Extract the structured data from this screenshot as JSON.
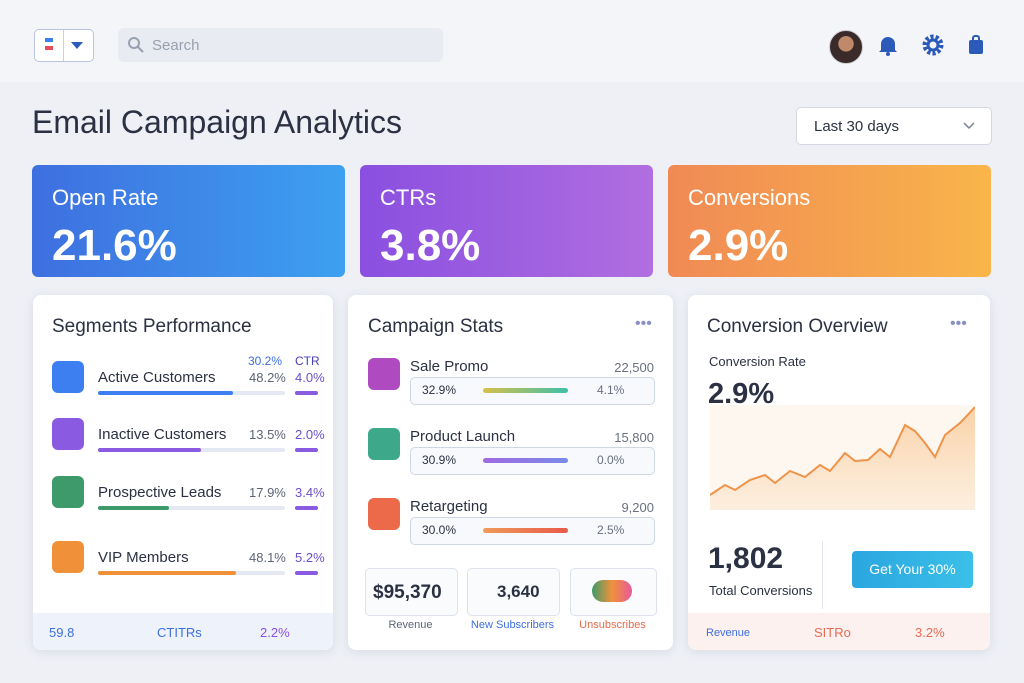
{
  "header": {
    "search": "Search"
  },
  "page": {
    "title": "Email Campaign Analytics",
    "date_range": "Last 30 days"
  },
  "kpis": [
    {
      "label": "Open Rate",
      "value": "21.6%"
    },
    {
      "label": "CTRs",
      "value": "3.8%"
    },
    {
      "label": "Conversions",
      "value": "2.9%"
    }
  ],
  "segments": {
    "title": "Segments Performance",
    "header": [
      "30.2%",
      "CTR"
    ],
    "rows": [
      {
        "name": "Active Customers",
        "rate": "48.2%",
        "ctr": "4.0%"
      },
      {
        "name": "Inactive Customers",
        "rate": "13.5%",
        "ctr": "2.0%"
      },
      {
        "name": "Prospective Leads",
        "rate": "17.9%",
        "ctr": "3.4%"
      },
      {
        "name": "VIP Members",
        "rate": "48.1%",
        "ctr": "5.2%"
      }
    ],
    "footer": [
      "59.8",
      "CTITRs",
      "2.2%"
    ]
  },
  "campaigns": {
    "title": "Campaign Stats",
    "rows": [
      {
        "name": "Sale Promo",
        "count": "22,500",
        "rate": "32.9%",
        "ctr": "4.1%"
      },
      {
        "name": "Product Launch",
        "count": "15,800",
        "rate": "30.9%",
        "ctr": "0.0%"
      },
      {
        "name": "Retargeting",
        "count": "9,200",
        "rate": "30.0%",
        "ctr": "2.5%"
      }
    ],
    "summary": [
      {
        "value": "$95,370",
        "label": "Revenue"
      },
      {
        "value": "3,640",
        "label": "New Subscribers"
      },
      {
        "label": "Unsubscribes"
      }
    ]
  },
  "conversion": {
    "title": "Conversion Overview",
    "rate_label": "Conversion Rate",
    "rate": "2.9%",
    "total": "1,802",
    "total_label": "Total Conversions",
    "button": "Get Your 30%",
    "footer": [
      "Revenue",
      "SITRo",
      "3.2%"
    ]
  }
}
